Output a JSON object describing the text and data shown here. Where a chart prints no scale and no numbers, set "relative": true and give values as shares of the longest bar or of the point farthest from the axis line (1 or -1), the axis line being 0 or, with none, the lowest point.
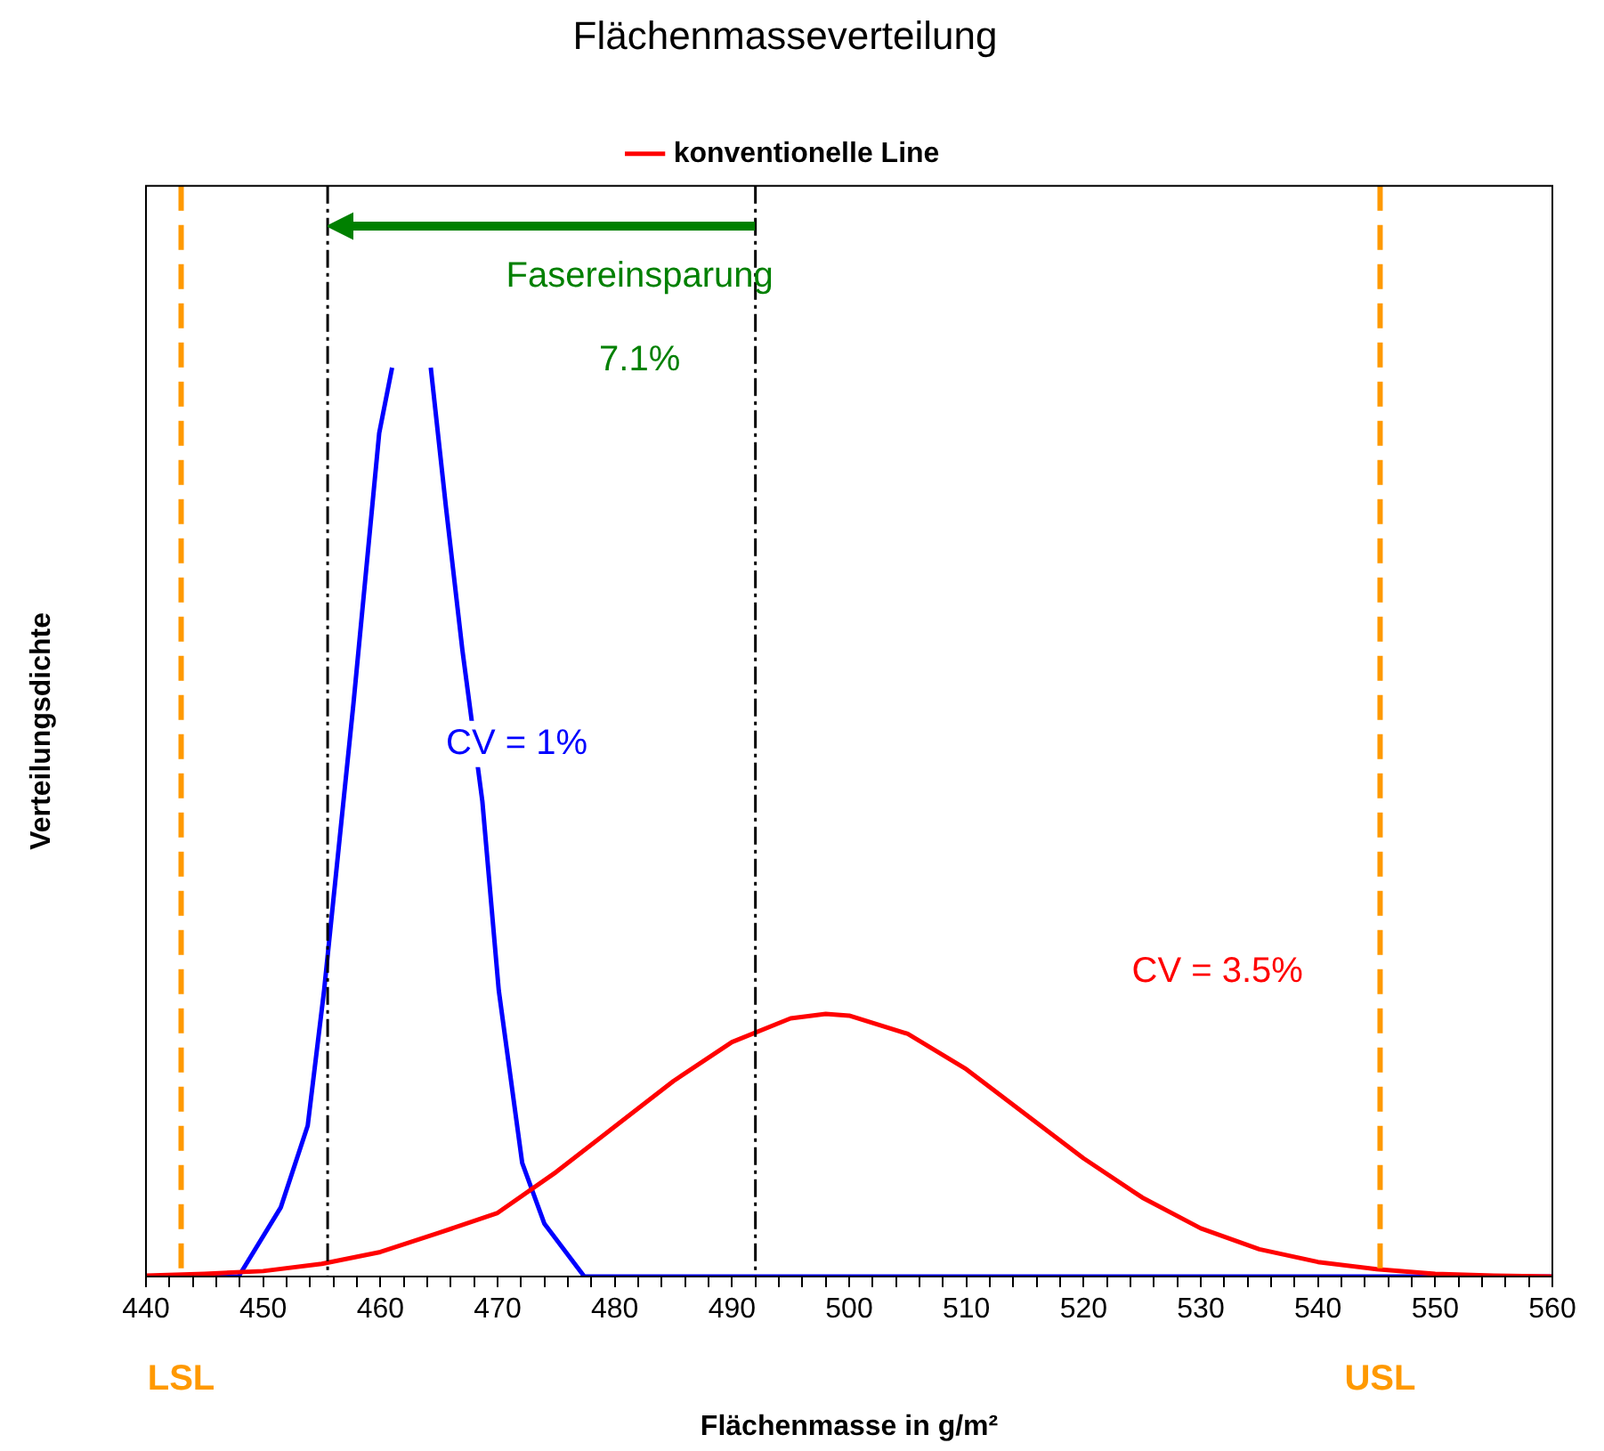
{
  "chart_data": {
    "type": "line",
    "title": "Flächenmasseverteilung",
    "xlabel": "Flächenmasse in g/m²",
    "ylabel": "Verteilungsdichte",
    "relative": true,
    "legend": "top",
    "grid": false,
    "marker": "none",
    "line_style": "solid",
    "xlim": [
      440,
      560
    ],
    "xticks": [
      440,
      {
        "value": 442,
        "label": null
      },
      {
        "value": 444,
        "label": null
      },
      {
        "value": 446,
        "label": null
      },
      {
        "value": 448,
        "label": null
      },
      450,
      {
        "value": 452,
        "label": null
      },
      {
        "value": 454,
        "label": null
      },
      {
        "value": 456,
        "label": null
      },
      {
        "value": 458,
        "label": null
      },
      460,
      {
        "value": 462,
        "label": null
      },
      {
        "value": 464,
        "label": null
      },
      {
        "value": 466,
        "label": null
      },
      {
        "value": 468,
        "label": null
      },
      470,
      {
        "value": 472,
        "label": null
      },
      {
        "value": 474,
        "label": null
      },
      {
        "value": 476,
        "label": null
      },
      {
        "value": 478,
        "label": null
      },
      480,
      {
        "value": 482,
        "label": null
      },
      {
        "value": 484,
        "label": null
      },
      {
        "value": 486,
        "label": null
      },
      {
        "value": 488,
        "label": null
      },
      490,
      {
        "value": 492,
        "label": null
      },
      {
        "value": 494,
        "label": null
      },
      {
        "value": 496,
        "label": null
      },
      {
        "value": 498,
        "label": null
      },
      500,
      {
        "value": 502,
        "label": null
      },
      {
        "value": 504,
        "label": null
      },
      {
        "value": 506,
        "label": null
      },
      {
        "value": 508,
        "label": null
      },
      510,
      {
        "value": 512,
        "label": null
      },
      {
        "value": 514,
        "label": null
      },
      {
        "value": 516,
        "label": null
      },
      {
        "value": 518,
        "label": null
      },
      520,
      {
        "value": 522,
        "label": null
      },
      {
        "value": 524,
        "label": null
      },
      {
        "value": 526,
        "label": null
      },
      {
        "value": 528,
        "label": null
      },
      530,
      {
        "value": 532,
        "label": null
      },
      {
        "value": 534,
        "label": null
      },
      {
        "value": 536,
        "label": null
      },
      {
        "value": 538,
        "label": null
      },
      540,
      {
        "value": 542,
        "label": null
      },
      {
        "value": 544,
        "label": null
      },
      {
        "value": 546,
        "label": null
      },
      {
        "value": 548,
        "label": null
      },
      550,
      {
        "value": 552,
        "label": null
      },
      {
        "value": 554,
        "label": null
      },
      {
        "value": 556,
        "label": null
      },
      {
        "value": 558,
        "label": null
      },
      560
    ],
    "series": [
      {
        "name": "konventionelle Line",
        "color": "#ff0000",
        "x": [
          440,
          445,
          450,
          455,
          460,
          465,
          470,
          475,
          480,
          485,
          490,
          495,
          498,
          500,
          505,
          510,
          515,
          520,
          525,
          530,
          535,
          540,
          545,
          550,
          555,
          560
        ],
        "values": [
          0.001,
          0.003,
          0.006,
          0.014,
          0.027,
          0.048,
          0.07,
          0.115,
          0.165,
          0.215,
          0.258,
          0.284,
          0.289,
          0.287,
          0.267,
          0.228,
          0.179,
          0.13,
          0.087,
          0.053,
          0.03,
          0.016,
          0.008,
          0.003,
          0.001,
          0
        ]
      },
      {
        "color": "#0000ff",
        "x": [
          440,
          447.9,
          451.5,
          453.8,
          455.2,
          457.7,
          459.9,
          461,
          462.6,
          464.3,
          465.6,
          467,
          468.7,
          470.1,
          472.1,
          474,
          477.4,
          560
        ],
        "values": [
          0,
          0,
          0.076,
          0.166,
          0.315,
          0.63,
          0.928,
          1,
          null,
          1,
          0.846,
          0.689,
          0.523,
          0.315,
          0.125,
          0.058,
          0,
          0
        ]
      }
    ],
    "ref_lines": [
      {
        "axis": "x",
        "value": 443,
        "label": "LSL",
        "color": "#ff9900",
        "line_style": "dashed"
      },
      {
        "axis": "x",
        "value": 545.3,
        "label": "USL",
        "color": "#ff9900",
        "line_style": "dashed"
      },
      {
        "axis": "x",
        "value": 455.5,
        "color": "#000000",
        "line_style": "dotted"
      },
      {
        "axis": "x",
        "value": 492,
        "color": "#000000",
        "line_style": "dotted"
      }
    ],
    "annotations": [
      "Fasereinsparung",
      "7.1%",
      "CV = 1%",
      "CV = 3.5%"
    ]
  }
}
